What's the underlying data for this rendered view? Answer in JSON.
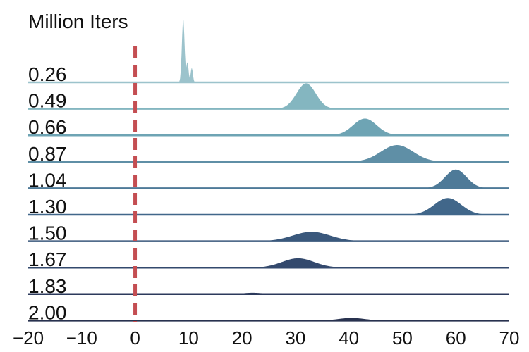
{
  "chart_data": {
    "type": "area",
    "title": "Million Iters",
    "xlabel": "",
    "ylabel": "",
    "xlim": [
      -20,
      70
    ],
    "x_ticks": [
      -20,
      -10,
      0,
      10,
      20,
      30,
      40,
      50,
      60,
      70
    ],
    "x_tick_labels": [
      "−20",
      "−10",
      "0",
      "10",
      "20",
      "30",
      "40",
      "50",
      "60",
      "70"
    ],
    "reference_line": {
      "x": 0,
      "style": "dashed",
      "color": "#c44e52"
    },
    "grid": false,
    "legend": "none",
    "series": [
      {
        "name": "0.26",
        "color": "#9cc3cc",
        "peaks": [
          {
            "mu": 9.0,
            "sigma": 0.25,
            "height": 0.95
          },
          {
            "mu": 9.8,
            "sigma": 0.2,
            "height": 0.3
          },
          {
            "mu": 10.6,
            "sigma": 0.2,
            "height": 0.22
          }
        ]
      },
      {
        "name": "0.49",
        "color": "#84b6c0",
        "peaks": [
          {
            "mu": 32.0,
            "sigma": 1.8,
            "height": 0.38
          }
        ]
      },
      {
        "name": "0.66",
        "color": "#6ea4b4",
        "peaks": [
          {
            "mu": 43.0,
            "sigma": 2.2,
            "height": 0.25
          }
        ]
      },
      {
        "name": "0.87",
        "color": "#5f8fa6",
        "peaks": [
          {
            "mu": 49.0,
            "sigma": 3.0,
            "height": 0.25
          }
        ]
      },
      {
        "name": "1.04",
        "color": "#4e7a98",
        "peaks": [
          {
            "mu": 60.0,
            "sigma": 2.0,
            "height": 0.28
          }
        ]
      },
      {
        "name": "1.30",
        "color": "#41678a",
        "peaks": [
          {
            "mu": 58.5,
            "sigma": 2.5,
            "height": 0.25
          }
        ]
      },
      {
        "name": "1.50",
        "color": "#3a587c",
        "peaks": [
          {
            "mu": 33.0,
            "sigma": 3.5,
            "height": 0.14
          }
        ]
      },
      {
        "name": "1.67",
        "color": "#33496d",
        "peaks": [
          {
            "mu": 30.5,
            "sigma": 3.0,
            "height": 0.14
          }
        ]
      },
      {
        "name": "1.83",
        "color": "#2c3a5c",
        "peaks": [
          {
            "mu": 22.0,
            "sigma": 2.0,
            "height": 0.02
          }
        ]
      },
      {
        "name": "2.00",
        "color": "#28324f",
        "peaks": [
          {
            "mu": 40.5,
            "sigma": 2.5,
            "height": 0.04
          }
        ]
      }
    ]
  }
}
